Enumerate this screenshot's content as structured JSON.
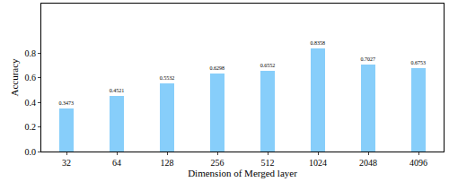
{
  "chart_data": {
    "type": "bar",
    "xlabel": "Dimension of Merged layer",
    "ylabel": "Accuracy",
    "categories": [
      "32",
      "64",
      "128",
      "256",
      "512",
      "1024",
      "2048",
      "4096"
    ],
    "values": [
      0.3473,
      0.4521,
      0.5532,
      0.6298,
      0.6552,
      0.8358,
      0.7027,
      0.6753
    ],
    "color": "#87cefa",
    "ylim": [
      0,
      1.2
    ],
    "yticks": [
      {
        "value": 0,
        "label": "0.0"
      },
      0.2,
      0.4,
      0.6,
      0.8
    ],
    "grid": false,
    "data_labels": true
  }
}
